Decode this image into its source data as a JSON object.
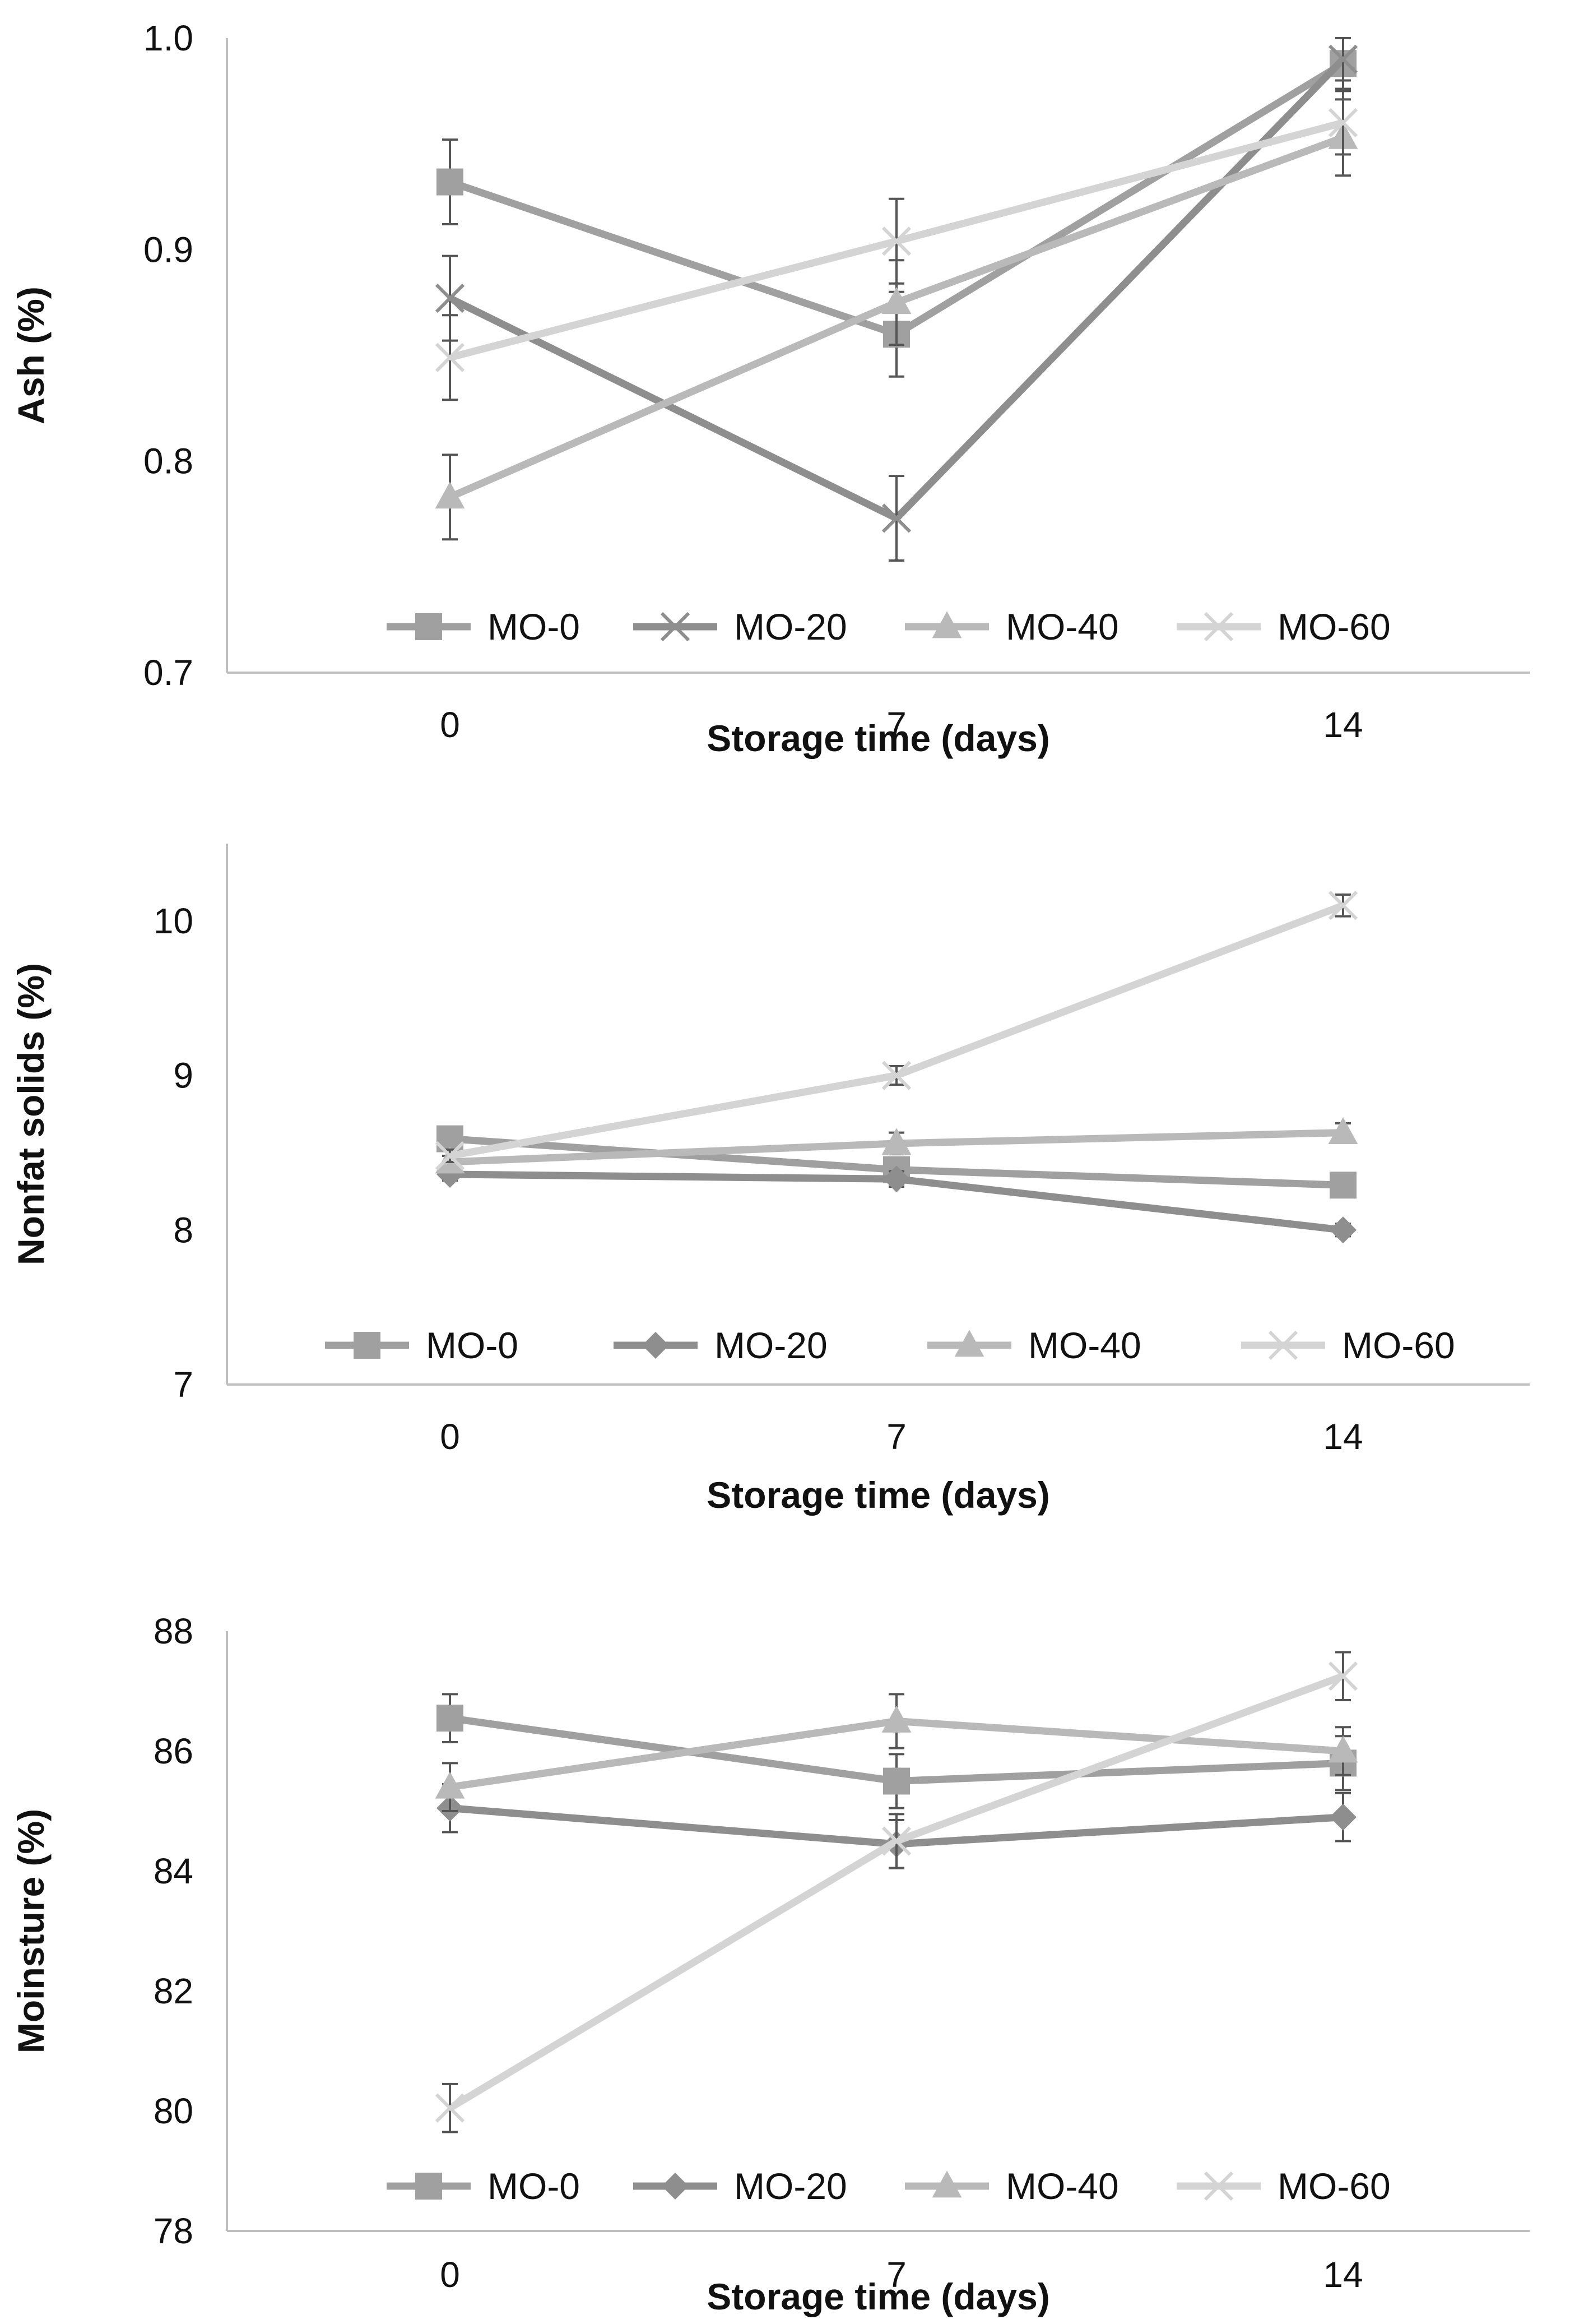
{
  "chart_data": [
    {
      "type": "line",
      "xlabel": "Storage time (days)",
      "ylabel": "Ash (%)",
      "categories": [
        "0",
        "7",
        "14"
      ],
      "ylim": [
        0.7,
        1.0
      ],
      "yticks": [
        "0.7",
        "0.8",
        "0.9",
        "1.0"
      ],
      "grid": false,
      "legend_position": "bottom-inside",
      "series": [
        {
          "name": "MO-0",
          "marker": "square",
          "color": "#a0a0a0",
          "values": [
            0.932,
            0.86,
            0.988
          ],
          "errors": [
            0.02,
            0.02,
            0.012
          ]
        },
        {
          "name": "MO-20",
          "marker": "x",
          "color": "#8e8e8e",
          "values": [
            0.877,
            0.773,
            0.99
          ],
          "errors": [
            0.02,
            0.02,
            0.01
          ]
        },
        {
          "name": "MO-40",
          "marker": "triangle",
          "color": "#b9b9b9",
          "values": [
            0.783,
            0.875,
            0.953
          ],
          "errors": [
            0.02,
            0.02,
            0.018
          ]
        },
        {
          "name": "MO-60",
          "marker": "x",
          "color": "#d4d4d4",
          "values": [
            0.849,
            0.904,
            0.96
          ],
          "errors": [
            0.02,
            0.02,
            0.015
          ]
        }
      ]
    },
    {
      "type": "line",
      "xlabel": "Storage time (days)",
      "ylabel": "Nonfat solids (%)",
      "categories": [
        "0",
        "7",
        "14"
      ],
      "ylim": [
        7,
        10.5
      ],
      "yticks": [
        "7",
        "8",
        "9",
        "10"
      ],
      "grid": false,
      "legend_position": "bottom-inside",
      "series": [
        {
          "name": "MO-0",
          "marker": "square",
          "color": "#a0a0a0",
          "values": [
            8.59,
            8.39,
            8.29
          ],
          "errors": [
            0.04,
            0.04,
            0.04
          ]
        },
        {
          "name": "MO-20",
          "marker": "diamond",
          "color": "#8e8e8e",
          "values": [
            8.36,
            8.33,
            8.0
          ],
          "errors": [
            0.04,
            0.05,
            0.04
          ]
        },
        {
          "name": "MO-40",
          "marker": "triangle",
          "color": "#b9b9b9",
          "values": [
            8.44,
            8.56,
            8.63
          ],
          "errors": [
            0.04,
            0.07,
            0.06
          ]
        },
        {
          "name": "MO-60",
          "marker": "x",
          "color": "#d4d4d4",
          "values": [
            8.48,
            9.0,
            10.1
          ],
          "errors": [
            0.04,
            0.06,
            0.07
          ]
        }
      ]
    },
    {
      "type": "line",
      "xlabel": "Storage time (days)",
      "ylabel": "Moinsture (%)",
      "categories": [
        "0",
        "7",
        "14"
      ],
      "ylim": [
        78,
        88
      ],
      "yticks": [
        "78",
        "80",
        "82",
        "84",
        "86",
        "88"
      ],
      "grid": false,
      "legend_position": "bottom-inside",
      "series": [
        {
          "name": "MO-0",
          "marker": "square",
          "color": "#a0a0a0",
          "values": [
            86.55,
            85.5,
            85.8
          ],
          "errors": [
            0.4,
            0.45,
            0.45
          ]
        },
        {
          "name": "MO-20",
          "marker": "diamond",
          "color": "#8e8e8e",
          "values": [
            85.05,
            84.45,
            84.9
          ],
          "errors": [
            0.4,
            0.4,
            0.4
          ]
        },
        {
          "name": "MO-40",
          "marker": "triangle",
          "color": "#b9b9b9",
          "values": [
            85.4,
            86.5,
            86.0
          ],
          "errors": [
            0.4,
            0.45,
            0.4
          ]
        },
        {
          "name": "MO-60",
          "marker": "x",
          "color": "#d4d4d4",
          "values": [
            80.05,
            84.5,
            87.25
          ],
          "errors": [
            0.4,
            0.45,
            0.4
          ]
        }
      ]
    }
  ]
}
